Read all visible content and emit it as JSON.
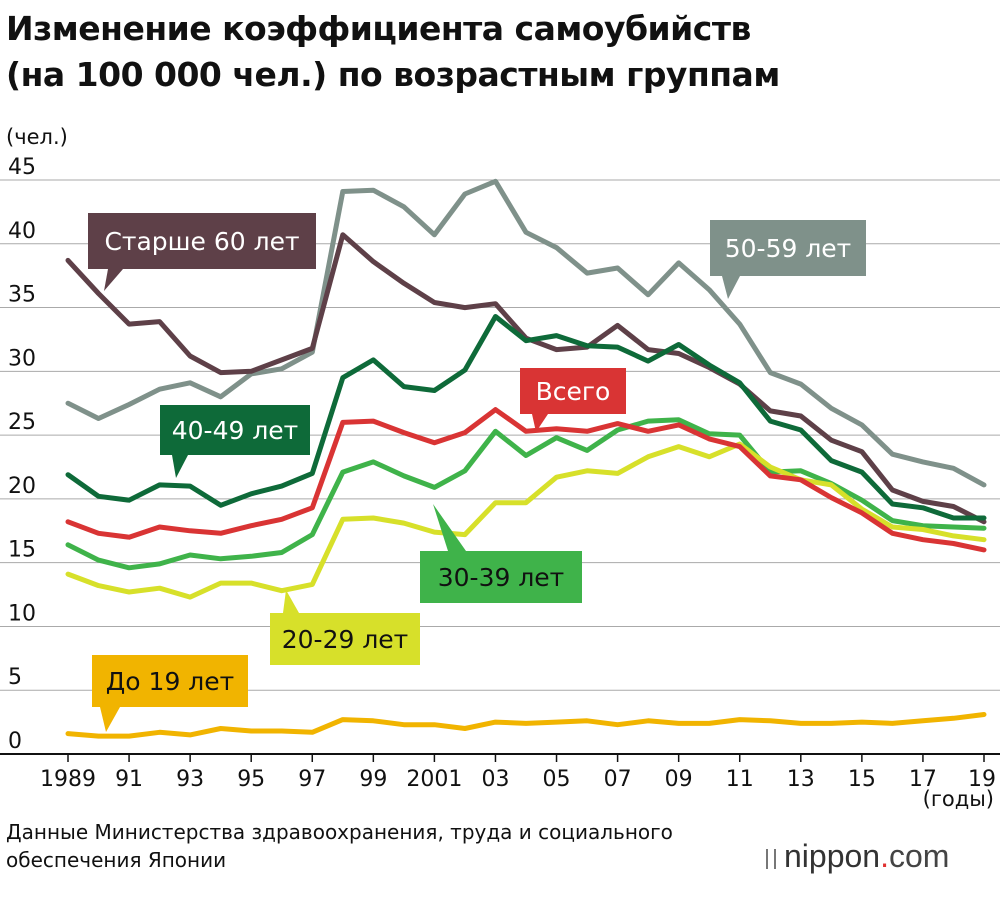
{
  "title_line1": "Изменение коэффициента самоубийств",
  "title_line2": "(на 100 000 чел.) по возрастным группам",
  "source_line1": "Данные Министерства здравоохранения, труда и социального",
  "source_line2": "обеспечения Японии",
  "logo": {
    "name": "nippon",
    "dot": ".",
    "com": "com"
  },
  "chart_data": {
    "type": "line",
    "ylabel": "(чел.)",
    "xlabel": "(годы)",
    "ylim": [
      0,
      45
    ],
    "xlim": [
      1989,
      2019
    ],
    "yticks": [
      0,
      5,
      10,
      15,
      20,
      25,
      30,
      35,
      40,
      45
    ],
    "xticks": [
      {
        "year": 1989,
        "label": "1989"
      },
      {
        "year": 1991,
        "label": "91"
      },
      {
        "year": 1993,
        "label": "93"
      },
      {
        "year": 1995,
        "label": "95"
      },
      {
        "year": 1997,
        "label": "97"
      },
      {
        "year": 1999,
        "label": "99"
      },
      {
        "year": 2001,
        "label": "2001"
      },
      {
        "year": 2003,
        "label": "03"
      },
      {
        "year": 2005,
        "label": "05"
      },
      {
        "year": 2007,
        "label": "07"
      },
      {
        "year": 2009,
        "label": "09"
      },
      {
        "year": 2011,
        "label": "11"
      },
      {
        "year": 2013,
        "label": "13"
      },
      {
        "year": 2015,
        "label": "15"
      },
      {
        "year": 2017,
        "label": "17"
      },
      {
        "year": 2019,
        "label": "19"
      }
    ],
    "grid": true,
    "x": [
      1989,
      1990,
      1991,
      1992,
      1993,
      1994,
      1995,
      1996,
      1997,
      1998,
      1999,
      2000,
      2001,
      2002,
      2003,
      2004,
      2005,
      2006,
      2007,
      2008,
      2009,
      2010,
      2011,
      2012,
      2013,
      2014,
      2015,
      2016,
      2017,
      2018,
      2019
    ],
    "series": [
      {
        "name": "50-59 лет",
        "color": "#7f918a",
        "values": [
          27.5,
          26.3,
          27.4,
          28.6,
          29.1,
          28.0,
          29.8,
          30.2,
          31.5,
          44.1,
          44.2,
          42.9,
          40.7,
          43.9,
          44.9,
          40.9,
          39.7,
          37.7,
          38.1,
          36.0,
          38.5,
          36.4,
          33.7,
          29.9,
          29.0,
          27.1,
          25.8,
          23.5,
          22.9,
          22.4,
          21.1
        ]
      },
      {
        "name": "Старше 60 лет",
        "color": "#5e4048",
        "values": [
          38.7,
          36.1,
          33.7,
          33.9,
          31.2,
          29.9,
          30.0,
          30.9,
          31.8,
          40.7,
          38.6,
          36.9,
          35.4,
          35.0,
          35.3,
          32.6,
          31.7,
          31.9,
          33.6,
          31.7,
          31.4,
          30.3,
          29.0,
          26.9,
          26.5,
          24.6,
          23.7,
          20.7,
          19.8,
          19.4,
          18.2
        ]
      },
      {
        "name": "40-49 лет",
        "color": "#0e6a39",
        "values": [
          21.9,
          20.2,
          19.9,
          21.1,
          21.0,
          19.5,
          20.4,
          21.0,
          22.0,
          29.5,
          30.9,
          28.8,
          28.5,
          30.1,
          34.3,
          32.4,
          32.8,
          32.0,
          31.9,
          30.8,
          32.1,
          30.5,
          29.1,
          26.1,
          25.4,
          23.0,
          22.1,
          19.6,
          19.3,
          18.5,
          18.5
        ]
      },
      {
        "name": "Всего",
        "color": "#d93434",
        "values": [
          18.2,
          17.3,
          17.0,
          17.8,
          17.5,
          17.3,
          17.9,
          18.4,
          19.3,
          26.0,
          26.1,
          25.2,
          24.4,
          25.2,
          27.0,
          25.3,
          25.5,
          25.3,
          25.9,
          25.3,
          25.8,
          24.7,
          24.1,
          21.8,
          21.5,
          20.1,
          18.9,
          17.3,
          16.8,
          16.5,
          16.0
        ]
      },
      {
        "name": "30-39 лет",
        "color": "#3fb34a",
        "values": [
          16.4,
          15.2,
          14.6,
          14.9,
          15.6,
          15.3,
          15.5,
          15.8,
          17.2,
          22.1,
          22.9,
          21.8,
          20.9,
          22.2,
          25.3,
          23.4,
          24.8,
          23.8,
          25.4,
          26.1,
          26.2,
          25.1,
          25.0,
          22.1,
          22.2,
          21.2,
          19.9,
          18.3,
          17.9,
          17.8,
          17.7
        ]
      },
      {
        "name": "20-29 лет",
        "color": "#d7e02a",
        "values": [
          14.1,
          13.2,
          12.7,
          13.0,
          12.3,
          13.4,
          13.4,
          12.8,
          13.3,
          18.4,
          18.5,
          18.1,
          17.4,
          17.2,
          19.7,
          19.7,
          21.7,
          22.2,
          22.0,
          23.3,
          24.1,
          23.3,
          24.3,
          22.5,
          21.5,
          21.1,
          19.2,
          17.8,
          17.6,
          17.1,
          16.8
        ]
      },
      {
        "name": "До 19 лет",
        "color": "#f1b400",
        "values": [
          1.6,
          1.4,
          1.4,
          1.7,
          1.5,
          2.0,
          1.8,
          1.8,
          1.7,
          2.7,
          2.6,
          2.3,
          2.3,
          2.0,
          2.5,
          2.4,
          2.5,
          2.6,
          2.3,
          2.6,
          2.4,
          2.4,
          2.7,
          2.6,
          2.4,
          2.4,
          2.5,
          2.4,
          2.6,
          2.8,
          3.1
        ]
      }
    ],
    "labels": [
      {
        "text": "Старше 60 лет",
        "bg": "#5e4048",
        "fg": "#ffffff"
      },
      {
        "text": "50-59 лет",
        "bg": "#7f918a",
        "fg": "#ffffff"
      },
      {
        "text": "Всего",
        "bg": "#d93434",
        "fg": "#ffffff"
      },
      {
        "text": "40-49 лет",
        "bg": "#0e6a39",
        "fg": "#ffffff"
      },
      {
        "text": "30-39 лет",
        "bg": "#3fb34a",
        "fg": "#111111"
      },
      {
        "text": "20-29 лет",
        "bg": "#d7e02a",
        "fg": "#111111"
      },
      {
        "text": "До 19 лет",
        "bg": "#f1b400",
        "fg": "#111111"
      }
    ]
  }
}
